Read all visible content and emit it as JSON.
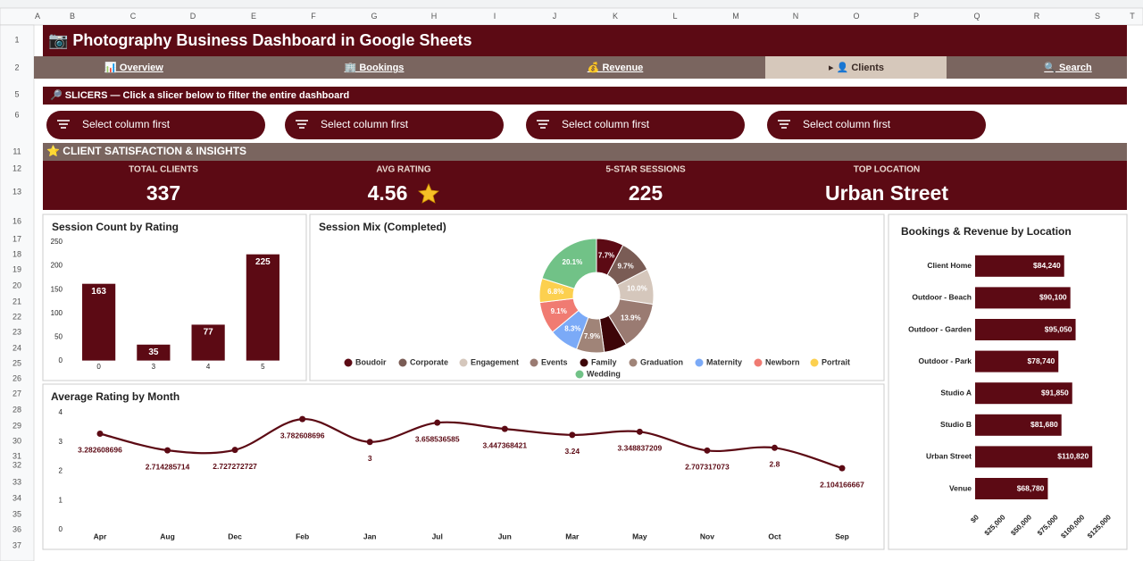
{
  "sheet": {
    "columns": [
      "A",
      "B",
      "C",
      "D",
      "E",
      "F",
      "G",
      "H",
      "I",
      "J",
      "K",
      "L",
      "M",
      "N",
      "O",
      "P",
      "Q",
      "R",
      "S",
      "T"
    ],
    "rows": [
      "1",
      "2",
      "5",
      "6",
      "11",
      "12",
      "13",
      "16",
      "17",
      "18",
      "19",
      "20",
      "21",
      "22",
      "23",
      "24",
      "25",
      "26",
      "27",
      "28",
      "29",
      "30",
      "31",
      "32",
      "33",
      "34",
      "35",
      "36",
      "37"
    ]
  },
  "header": {
    "title": "📷  Photography Business Dashboard in Google Sheets",
    "tabs": [
      "📊 Overview",
      "🏢 Bookings",
      "💰 Revenue",
      "▸ 👤 Clients",
      "🔍 Search"
    ]
  },
  "slicers": {
    "title": "🔎 SLICERS — Click a slicer below to filter the entire dashboard",
    "items": [
      "Select column first",
      "Select column first",
      "Select column first",
      "Select column first"
    ]
  },
  "section": {
    "title": "⭐ CLIENT SATISFACTION & INSIGHTS",
    "kpis": [
      {
        "label": "TOTAL CLIENTS",
        "value": 337
      },
      {
        "label": "AVG RATING",
        "value": 4.56
      },
      {
        "label": "5-STAR SESSIONS",
        "value": 225
      },
      {
        "label": "TOP LOCATION",
        "value": "Urban Street"
      }
    ]
  },
  "charts": [
    {
      "type": "bar",
      "title": "Session Count by Rating",
      "categories": [
        "0",
        "3",
        "4",
        "5"
      ],
      "values": [
        163,
        35,
        77,
        225
      ],
      "color": "#5c0a14",
      "ylim": [
        0,
        250
      ],
      "yticks": [
        0,
        50,
        100,
        150,
        200,
        250
      ]
    },
    {
      "type": "pie",
      "title": "Session Mix (Completed)",
      "categories": [
        "Boudoir",
        "Corporate",
        "Engagement",
        "Events",
        "Family",
        "Graduation",
        "Maternity",
        "Newborn",
        "Portrait",
        "Wedding"
      ],
      "values": [
        7.7,
        9.7,
        10.0,
        13.9,
        6.5,
        7.9,
        8.3,
        9.1,
        6.8,
        20.1
      ],
      "value_labels": [
        "7.7%",
        "9.7%",
        "10.0%",
        "13.9%",
        null,
        "7.9%",
        "8.3%",
        "9.1%",
        "6.8%",
        "20.1%"
      ],
      "colors": [
        "#5c0a14",
        "#7a5c55",
        "#d5c7bc",
        "#9a7b72",
        "#3d0508",
        "#a08478",
        "#7baaf7",
        "#f07b72",
        "#fcd04f",
        "#71c287"
      ]
    },
    {
      "type": "line",
      "title": "Average Rating by Month",
      "categories": [
        "Apr",
        "Aug",
        "Dec",
        "Feb",
        "Jan",
        "Jul",
        "Jun",
        "Mar",
        "May",
        "Nov",
        "Oct",
        "Sep"
      ],
      "values": [
        3.282608696,
        2.714285714,
        2.727272727,
        3.782608696,
        3,
        3.658536585,
        3.447368421,
        3.24,
        3.348837209,
        2.707317073,
        2.8,
        2.104166667
      ],
      "color": "#5c0a14",
      "ylim": [
        0,
        4
      ],
      "yticks": [
        0,
        1,
        2,
        3,
        4
      ]
    },
    {
      "type": "hbar",
      "title": "Bookings & Revenue by Location",
      "categories": [
        "Client Home",
        "Outdoor - Beach",
        "Outdoor - Garden",
        "Outdoor - Park",
        "Studio A",
        "Studio B",
        "Urban Street",
        "Venue"
      ],
      "values": [
        84240,
        90100,
        95050,
        78740,
        91850,
        81680,
        110820,
        68780
      ],
      "value_labels": [
        "$84,240",
        "$90,100",
        "$95,050",
        "$78,740",
        "$91,850",
        "$81,680",
        "$110,820",
        "$68,780"
      ],
      "color": "#5c0a14",
      "xlim": [
        0,
        125000
      ],
      "xticks": [
        {
          "value": 0,
          "label": "$0"
        },
        {
          "value": 25000,
          "label": "$25,000"
        },
        {
          "value": 50000,
          "label": "$50,000"
        },
        {
          "value": 75000,
          "label": "$75,000"
        },
        {
          "value": 100000,
          "label": "$100,000"
        },
        {
          "value": 125000,
          "label": "$125,000"
        }
      ]
    }
  ]
}
